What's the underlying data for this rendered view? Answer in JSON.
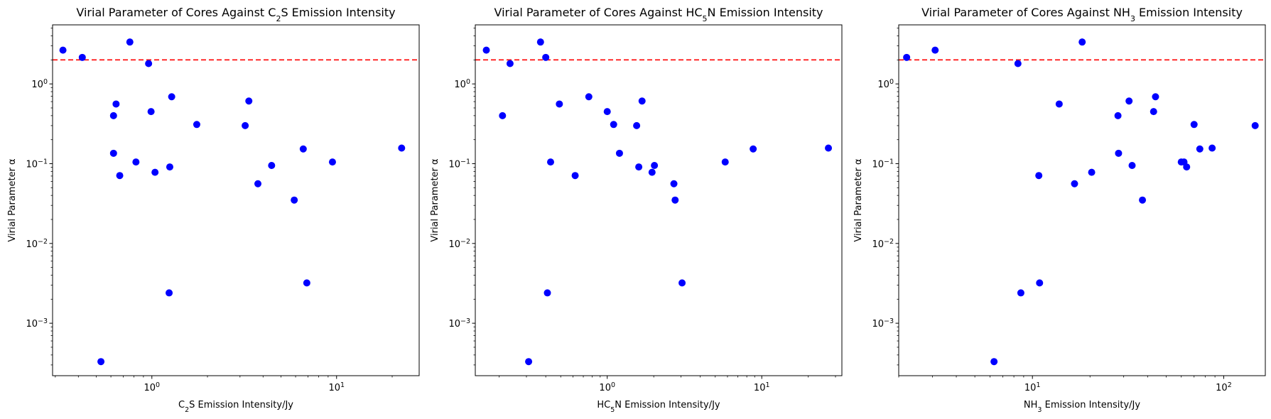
{
  "chart_data": [
    {
      "type": "scatter",
      "title_parts": [
        "Virial Parameter of Cores Against C",
        "2",
        "S Emission Intensity"
      ],
      "xlabel_parts": [
        "C",
        "2",
        "S Emission Intensity/Jy"
      ],
      "ylabel": "Virial Parameter α",
      "xscale": "log",
      "yscale": "log",
      "xlim": [
        0.29,
        28
      ],
      "ylim": [
        0.00022,
        5.5
      ],
      "x_ticks": [
        1,
        10
      ],
      "y_ticks": [
        0.001,
        0.01,
        0.1,
        1
      ],
      "tick_base": "10",
      "tick_exps": {
        "x": [
          "0",
          "1"
        ],
        "y": [
          "−3",
          "−2",
          "−1",
          "0"
        ]
      },
      "hline": 2.0,
      "hline_color": "#ff0000",
      "marker_color": "#0000ff",
      "grid": false,
      "points": [
        {
          "x": 0.33,
          "y": 2.65
        },
        {
          "x": 0.42,
          "y": 2.15
        },
        {
          "x": 0.53,
          "y": 0.00033
        },
        {
          "x": 0.62,
          "y": 0.4
        },
        {
          "x": 0.62,
          "y": 0.135
        },
        {
          "x": 0.64,
          "y": 0.56
        },
        {
          "x": 0.67,
          "y": 0.071
        },
        {
          "x": 0.76,
          "y": 3.35
        },
        {
          "x": 0.82,
          "y": 0.105
        },
        {
          "x": 0.96,
          "y": 1.8
        },
        {
          "x": 0.99,
          "y": 0.45
        },
        {
          "x": 1.04,
          "y": 0.078
        },
        {
          "x": 1.24,
          "y": 0.0024
        },
        {
          "x": 1.25,
          "y": 0.091
        },
        {
          "x": 1.28,
          "y": 0.69
        },
        {
          "x": 1.75,
          "y": 0.31
        },
        {
          "x": 3.2,
          "y": 0.3
        },
        {
          "x": 3.35,
          "y": 0.61
        },
        {
          "x": 3.75,
          "y": 0.056
        },
        {
          "x": 4.45,
          "y": 0.095
        },
        {
          "x": 5.9,
          "y": 0.035
        },
        {
          "x": 6.6,
          "y": 0.153
        },
        {
          "x": 6.9,
          "y": 0.0032
        },
        {
          "x": 9.5,
          "y": 0.105
        },
        {
          "x": 22.5,
          "y": 0.157
        }
      ]
    },
    {
      "type": "scatter",
      "title_parts": [
        "Virial Parameter of Cores Against HC",
        "5",
        "N Emission Intensity"
      ],
      "xlabel_parts": [
        "HC",
        "5",
        "N Emission Intensity/Jy"
      ],
      "ylabel": "Virial Parameter α",
      "xscale": "log",
      "yscale": "log",
      "xlim": [
        0.14,
        33
      ],
      "ylim": [
        0.00022,
        5.5
      ],
      "x_ticks": [
        1,
        10
      ],
      "y_ticks": [
        0.001,
        0.01,
        0.1,
        1
      ],
      "tick_base": "10",
      "tick_exps": {
        "x": [
          "0",
          "1"
        ],
        "y": [
          "−3",
          "−2",
          "−1",
          "0"
        ]
      },
      "hline": 2.0,
      "hline_color": "#ff0000",
      "marker_color": "#0000ff",
      "grid": false,
      "points": [
        {
          "x": 0.165,
          "y": 2.65
        },
        {
          "x": 0.21,
          "y": 0.4
        },
        {
          "x": 0.235,
          "y": 1.8
        },
        {
          "x": 0.31,
          "y": 0.00033
        },
        {
          "x": 0.37,
          "y": 3.35
        },
        {
          "x": 0.4,
          "y": 2.15
        },
        {
          "x": 0.41,
          "y": 0.0024
        },
        {
          "x": 0.43,
          "y": 0.105
        },
        {
          "x": 0.49,
          "y": 0.56
        },
        {
          "x": 0.62,
          "y": 0.071
        },
        {
          "x": 0.76,
          "y": 0.69
        },
        {
          "x": 1.0,
          "y": 0.45
        },
        {
          "x": 1.1,
          "y": 0.31
        },
        {
          "x": 1.2,
          "y": 0.135
        },
        {
          "x": 1.55,
          "y": 0.3
        },
        {
          "x": 1.6,
          "y": 0.091
        },
        {
          "x": 1.68,
          "y": 0.61
        },
        {
          "x": 1.95,
          "y": 0.078
        },
        {
          "x": 2.02,
          "y": 0.095
        },
        {
          "x": 2.7,
          "y": 0.056
        },
        {
          "x": 2.75,
          "y": 0.035
        },
        {
          "x": 3.05,
          "y": 0.0032
        },
        {
          "x": 5.8,
          "y": 0.105
        },
        {
          "x": 8.8,
          "y": 0.153
        },
        {
          "x": 27.0,
          "y": 0.157
        }
      ]
    },
    {
      "type": "scatter",
      "title_parts": [
        "Virial Parameter of Cores Against NH",
        "3",
        " Emission Intensity"
      ],
      "xlabel_parts": [
        "NH",
        "3",
        " Emission Intensity/Jy"
      ],
      "ylabel": "Virial Parameter α",
      "xscale": "log",
      "yscale": "log",
      "xlim": [
        2.0,
        165
      ],
      "ylim": [
        0.00022,
        5.5
      ],
      "x_ticks": [
        10,
        100
      ],
      "y_ticks": [
        0.001,
        0.01,
        0.1,
        1
      ],
      "tick_base": "10",
      "tick_exps": {
        "x": [
          "1",
          "2"
        ],
        "y": [
          "−3",
          "−2",
          "−1",
          "0"
        ]
      },
      "hline": 2.0,
      "hline_color": "#ff0000",
      "marker_color": "#0000ff",
      "grid": false,
      "points": [
        {
          "x": 2.2,
          "y": 2.15
        },
        {
          "x": 3.1,
          "y": 2.65
        },
        {
          "x": 6.3,
          "y": 0.00033
        },
        {
          "x": 8.4,
          "y": 1.8
        },
        {
          "x": 8.7,
          "y": 0.0024
        },
        {
          "x": 10.8,
          "y": 0.071
        },
        {
          "x": 10.9,
          "y": 0.0032
        },
        {
          "x": 13.8,
          "y": 0.56
        },
        {
          "x": 16.6,
          "y": 0.056
        },
        {
          "x": 18.2,
          "y": 3.35
        },
        {
          "x": 20.4,
          "y": 0.078
        },
        {
          "x": 28.0,
          "y": 0.4
        },
        {
          "x": 28.2,
          "y": 0.135
        },
        {
          "x": 32.0,
          "y": 0.61
        },
        {
          "x": 33.2,
          "y": 0.095
        },
        {
          "x": 37.6,
          "y": 0.035
        },
        {
          "x": 43.0,
          "y": 0.45
        },
        {
          "x": 44.0,
          "y": 0.69
        },
        {
          "x": 60.0,
          "y": 0.105
        },
        {
          "x": 62.0,
          "y": 0.105
        },
        {
          "x": 64.0,
          "y": 0.091
        },
        {
          "x": 70.0,
          "y": 0.31
        },
        {
          "x": 75.0,
          "y": 0.153
        },
        {
          "x": 87.0,
          "y": 0.157
        },
        {
          "x": 146.0,
          "y": 0.3
        }
      ]
    }
  ]
}
